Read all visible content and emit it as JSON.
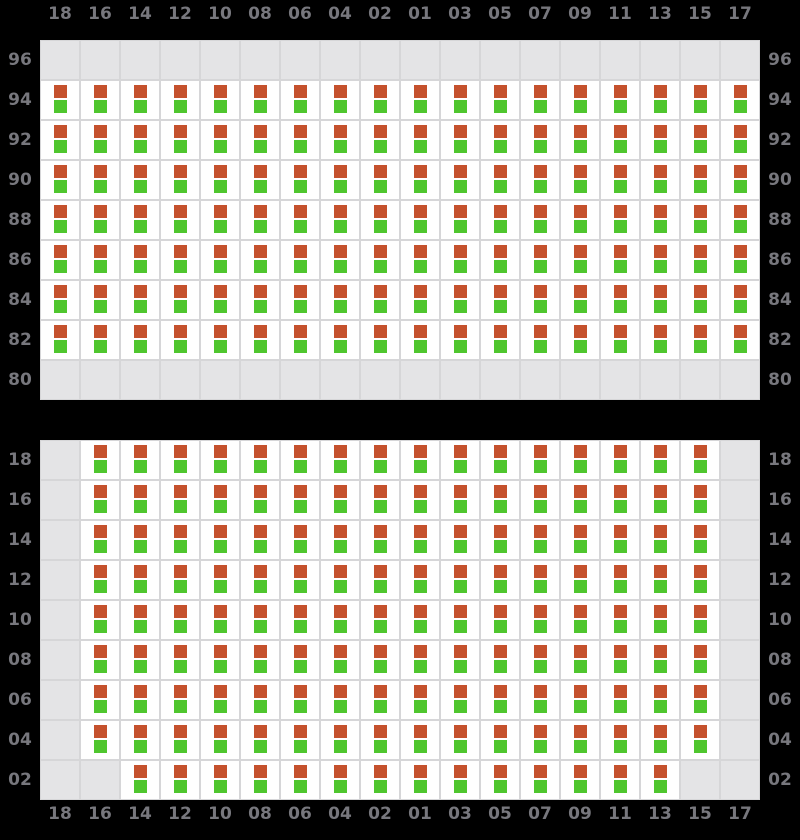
{
  "colors": {
    "background": "#000000",
    "cell_fill": "#ffffff",
    "empty_fill": "#e4e4e6",
    "grid_line": "#d6d6d8",
    "label_text": "#77777d",
    "indicator_top": "#c5512d",
    "indicator_bottom": "#4fc62e"
  },
  "column_labels": [
    "18",
    "16",
    "14",
    "12",
    "10",
    "08",
    "06",
    "04",
    "02",
    "01",
    "03",
    "05",
    "07",
    "09",
    "11",
    "13",
    "15",
    "17"
  ],
  "cell_indicators": {
    "upper": "orange-square",
    "lower": "green-square"
  },
  "grids": [
    {
      "id": "block-a",
      "rows": [
        {
          "label": "96",
          "cells": "000000000000000000"
        },
        {
          "label": "94",
          "cells": "111111111111111111"
        },
        {
          "label": "92",
          "cells": "111111111111111111"
        },
        {
          "label": "90",
          "cells": "111111111111111111"
        },
        {
          "label": "88",
          "cells": "111111111111111111"
        },
        {
          "label": "86",
          "cells": "111111111111111111"
        },
        {
          "label": "84",
          "cells": "111111111111111111"
        },
        {
          "label": "82",
          "cells": "111111111111111111"
        },
        {
          "label": "80",
          "cells": "000000000000000000"
        }
      ]
    },
    {
      "id": "block-b",
      "rows": [
        {
          "label": "18",
          "cells": "011111111111111110"
        },
        {
          "label": "16",
          "cells": "011111111111111110"
        },
        {
          "label": "14",
          "cells": "011111111111111110"
        },
        {
          "label": "12",
          "cells": "011111111111111110"
        },
        {
          "label": "10",
          "cells": "011111111111111110"
        },
        {
          "label": "08",
          "cells": "011111111111111110"
        },
        {
          "label": "06",
          "cells": "011111111111111110"
        },
        {
          "label": "04",
          "cells": "011111111111111110"
        },
        {
          "label": "02",
          "cells": "001111111111111100"
        }
      ]
    }
  ]
}
